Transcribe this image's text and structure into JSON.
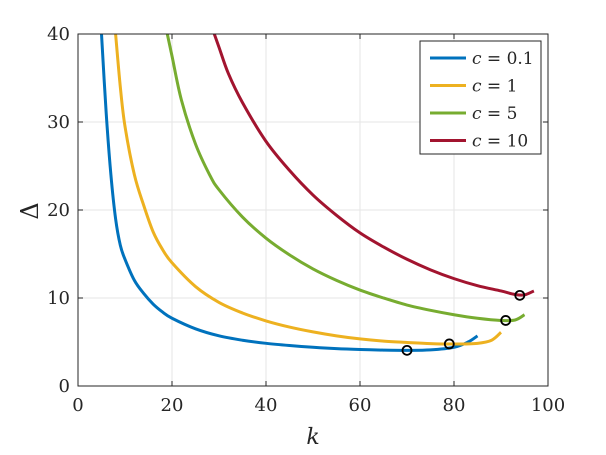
{
  "chart_data": {
    "type": "line",
    "xlabel": "k",
    "ylabel": "Δ",
    "xlim": [
      0,
      100
    ],
    "ylim": [
      0,
      40
    ],
    "xticks": [
      0,
      20,
      40,
      60,
      80,
      100
    ],
    "yticks": [
      0,
      10,
      20,
      30,
      40
    ],
    "grid": true,
    "legend_position": "top-right",
    "series": [
      {
        "name": "c = 0.1",
        "var": "c",
        "value": "0.1",
        "color": "#0072BD",
        "x": [
          5,
          6,
          7,
          8,
          9,
          10,
          12,
          14,
          16,
          18,
          20,
          25,
          30,
          35,
          40,
          45,
          50,
          55,
          60,
          65,
          70,
          75,
          80,
          83,
          85
        ],
        "y": [
          40,
          31,
          24,
          19,
          16,
          14.4,
          12,
          10.5,
          9.3,
          8.4,
          7.7,
          6.5,
          5.7,
          5.2,
          4.85,
          4.6,
          4.4,
          4.25,
          4.15,
          4.08,
          4.05,
          4.1,
          4.4,
          5.0,
          5.7
        ],
        "marker": [
          70,
          4.05
        ]
      },
      {
        "name": "c = 1",
        "var": "c",
        "value": "1",
        "color": "#EDB120",
        "x": [
          8,
          9,
          10,
          12,
          14,
          16,
          18,
          20,
          25,
          30,
          35,
          40,
          45,
          50,
          55,
          60,
          65,
          70,
          75,
          80,
          85,
          88,
          90
        ],
        "y": [
          40,
          34,
          29.5,
          24,
          20.5,
          17.5,
          15.5,
          14.0,
          11.3,
          9.5,
          8.3,
          7.4,
          6.7,
          6.15,
          5.7,
          5.35,
          5.1,
          4.95,
          4.82,
          4.77,
          4.85,
          5.2,
          6.1
        ],
        "marker": [
          79,
          4.78
        ]
      },
      {
        "name": "c = 5",
        "var": "c",
        "value": "5",
        "color": "#77AC30",
        "x": [
          19,
          20,
          22,
          25,
          28,
          30,
          35,
          40,
          45,
          50,
          55,
          60,
          65,
          70,
          75,
          80,
          85,
          90,
          93,
          95
        ],
        "y": [
          40,
          37.5,
          32.5,
          27.5,
          24,
          22.3,
          19.2,
          16.8,
          14.9,
          13.3,
          12.0,
          10.9,
          10.0,
          9.2,
          8.6,
          8.1,
          7.7,
          7.45,
          7.5,
          8.1
        ],
        "marker": [
          91,
          7.45
        ]
      },
      {
        "name": "c = 10",
        "var": "c",
        "value": "10",
        "color": "#A2142F",
        "x": [
          29,
          30,
          32,
          35,
          40,
          45,
          50,
          55,
          60,
          65,
          70,
          75,
          80,
          85,
          90,
          93,
          95,
          97
        ],
        "y": [
          40,
          38.5,
          35.5,
          32.2,
          27.8,
          24.5,
          21.7,
          19.4,
          17.4,
          15.8,
          14.4,
          13.2,
          12.2,
          11.4,
          10.8,
          10.4,
          10.35,
          10.8
        ],
        "marker": [
          94,
          10.3
        ]
      }
    ]
  }
}
